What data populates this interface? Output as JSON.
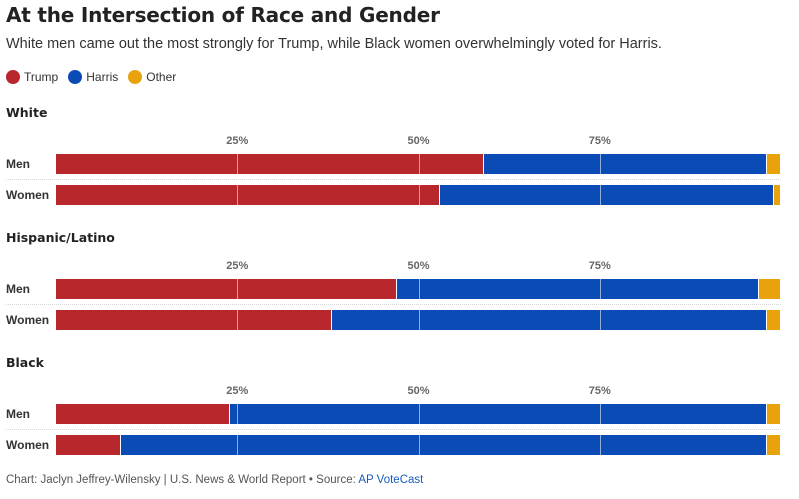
{
  "title": "At the Intersection of Race and Gender",
  "subtitle": "White men came out the most strongly for Trump, while Black women overwhelmingly voted for Harris.",
  "colors": {
    "Trump": "#b8272c",
    "Harris": "#0a4bb5",
    "Other": "#e8a20c"
  },
  "footer": {
    "credit": "Chart: Jaclyn Jeffrey-Wilensky | U.S. News & World Report • Source: ",
    "source_link": "AP VoteCast"
  },
  "chart_data": {
    "type": "bar",
    "stacked": true,
    "orientation": "horizontal",
    "xlim": [
      0,
      100
    ],
    "x_ticks": [
      "25%",
      "50%",
      "75%"
    ],
    "legend": [
      "Trump",
      "Harris",
      "Other"
    ],
    "legend_position": "top-left",
    "panels": [
      {
        "title": "White",
        "rows": [
          {
            "label": "Men",
            "values": {
              "Trump": 59,
              "Harris": 39,
              "Other": 2
            }
          },
          {
            "label": "Women",
            "values": {
              "Trump": 53,
              "Harris": 46,
              "Other": 1
            }
          }
        ]
      },
      {
        "title": "Hispanic/Latino",
        "rows": [
          {
            "label": "Men",
            "values": {
              "Trump": 47,
              "Harris": 50,
              "Other": 3
            }
          },
          {
            "label": "Women",
            "values": {
              "Trump": 38,
              "Harris": 60,
              "Other": 2
            }
          }
        ]
      },
      {
        "title": "Black",
        "rows": [
          {
            "label": "Men",
            "values": {
              "Trump": 24,
              "Harris": 74,
              "Other": 2
            }
          },
          {
            "label": "Women",
            "values": {
              "Trump": 9,
              "Harris": 89,
              "Other": 2
            }
          }
        ]
      }
    ]
  }
}
